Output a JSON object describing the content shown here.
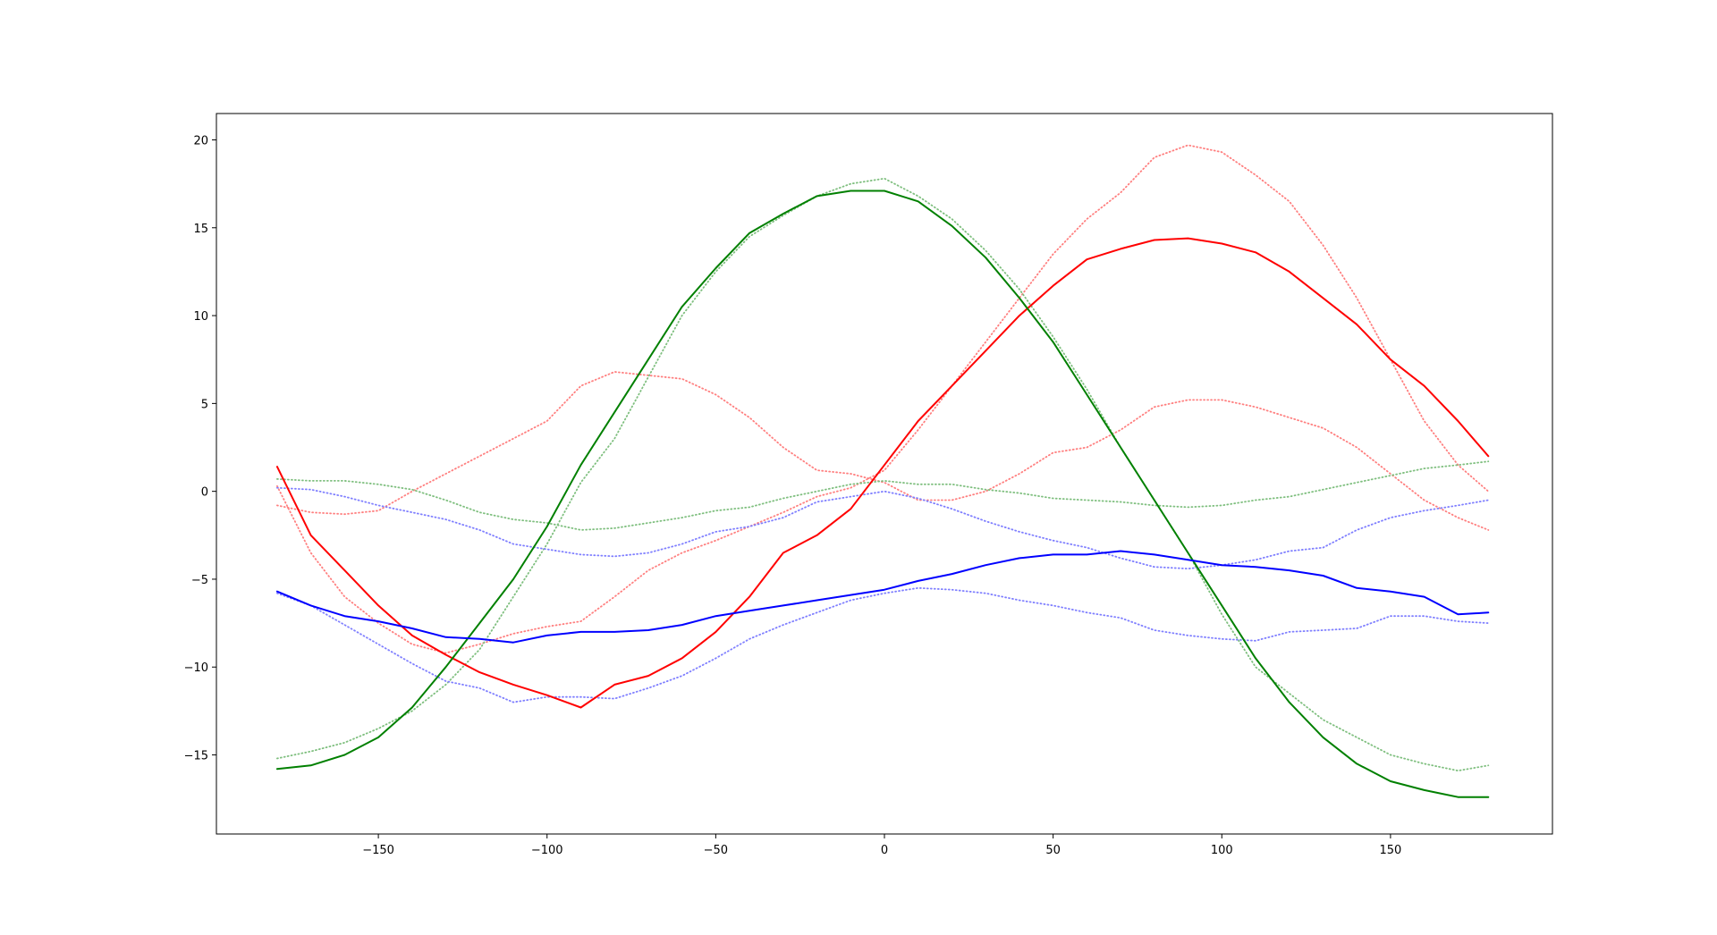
{
  "chart_data": {
    "type": "line",
    "title": "",
    "xlabel": "",
    "ylabel": "",
    "xlim": [
      -198,
      198
    ],
    "ylim": [
      -19.5,
      21.5
    ],
    "grid": false,
    "legend": "none",
    "x_ticks": [
      -150,
      -100,
      -50,
      0,
      50,
      100,
      150
    ],
    "y_ticks": [
      -15,
      -10,
      -5,
      0,
      5,
      10,
      15,
      20
    ],
    "x_tick_labels": [
      "−150",
      "−100",
      "−50",
      "0",
      "50",
      "100",
      "150"
    ],
    "y_tick_labels": [
      "−15",
      "−10",
      "−5",
      "0",
      "5",
      "10",
      "15",
      "20"
    ],
    "x": [
      -180,
      -170,
      -160,
      -150,
      -140,
      -130,
      -120,
      -110,
      -100,
      -90,
      -80,
      -70,
      -60,
      -50,
      -40,
      -30,
      -20,
      -10,
      0,
      10,
      20,
      30,
      40,
      50,
      60,
      70,
      80,
      90,
      100,
      110,
      120,
      130,
      140,
      150,
      160,
      170,
      179
    ],
    "series": [
      {
        "color": "#ff0000",
        "style": "solid",
        "values": [
          1.4,
          -2.5,
          -4.5,
          -6.5,
          -8.2,
          -9.3,
          -10.3,
          -11.0,
          -11.6,
          -12.3,
          -11.0,
          -10.5,
          -9.5,
          -8.0,
          -6.0,
          -3.5,
          -2.5,
          -1.0,
          1.5,
          4.0,
          6.0,
          8.0,
          10.0,
          11.7,
          13.2,
          13.8,
          14.3,
          14.4,
          14.1,
          13.6,
          12.5,
          11.0,
          9.5,
          7.5,
          6.0,
          4.0,
          2.0
        ]
      },
      {
        "color": "#008000",
        "style": "solid",
        "values": [
          -15.8,
          -15.6,
          -15.0,
          -14.0,
          -12.3,
          -10.0,
          -7.5,
          -5.0,
          -2.0,
          1.5,
          4.5,
          7.5,
          10.5,
          12.7,
          14.7,
          15.8,
          16.8,
          17.1,
          17.1,
          16.5,
          15.1,
          13.3,
          11.0,
          8.5,
          5.5,
          2.5,
          -0.5,
          -3.5,
          -6.5,
          -9.5,
          -12.0,
          -14.0,
          -15.5,
          -16.5,
          -17.0,
          -17.4,
          -17.4
        ]
      },
      {
        "color": "#0000ff",
        "style": "solid",
        "values": [
          -5.7,
          -6.5,
          -7.1,
          -7.4,
          -7.8,
          -8.3,
          -8.4,
          -8.6,
          -8.2,
          -8.0,
          -8.0,
          -7.9,
          -7.6,
          -7.1,
          -6.8,
          -6.5,
          -6.2,
          -5.9,
          -5.6,
          -5.1,
          -4.7,
          -4.2,
          -3.8,
          -3.6,
          -3.6,
          -3.4,
          -3.6,
          -3.9,
          -4.2,
          -4.3,
          -4.5,
          -4.8,
          -5.5,
          -5.7,
          -6.0,
          -7.0,
          -6.9
        ]
      },
      {
        "color": "#ff7f7f",
        "style": "dotted",
        "values": [
          -0.8,
          -1.2,
          -1.3,
          -1.1,
          0.0,
          1.0,
          2.0,
          3.0,
          4.0,
          6.0,
          6.8,
          6.6,
          6.4,
          5.5,
          4.2,
          2.5,
          1.2,
          1.0,
          0.5,
          -0.5,
          -0.5,
          0.0,
          1.0,
          2.2,
          2.5,
          3.5,
          4.8,
          5.2,
          5.2,
          4.8,
          4.2,
          3.6,
          2.5,
          1.0,
          -0.5,
          -1.5,
          -2.2
        ]
      },
      {
        "color": "#ff7f7f",
        "style": "dotted",
        "values": [
          0.3,
          -3.5,
          -6.0,
          -7.5,
          -8.7,
          -9.2,
          -8.7,
          -8.1,
          -7.7,
          -7.4,
          -6.0,
          -4.5,
          -3.5,
          -2.8,
          -2.0,
          -1.2,
          -0.3,
          0.2,
          1.2,
          3.5,
          6.0,
          8.5,
          11.0,
          13.5,
          15.5,
          17.0,
          19.0,
          19.7,
          19.3,
          18.0,
          16.5,
          14.0,
          11.0,
          7.5,
          4.0,
          1.5,
          0.0
        ]
      },
      {
        "color": "#7fbf7f",
        "style": "dotted",
        "values": [
          -15.2,
          -14.8,
          -14.3,
          -13.5,
          -12.5,
          -11.0,
          -9.0,
          -6.0,
          -3.0,
          0.5,
          3.0,
          6.5,
          10.0,
          12.5,
          14.5,
          15.7,
          16.8,
          17.5,
          17.8,
          16.8,
          15.5,
          13.7,
          11.5,
          8.8,
          5.8,
          2.5,
          -0.5,
          -3.5,
          -7.0,
          -10.0,
          -11.5,
          -13.0,
          -14.0,
          -15.0,
          -15.5,
          -15.9,
          -15.6
        ]
      },
      {
        "color": "#7fbf7f",
        "style": "dotted",
        "values": [
          0.7,
          0.6,
          0.6,
          0.4,
          0.1,
          -0.5,
          -1.2,
          -1.6,
          -1.8,
          -2.2,
          -2.1,
          -1.8,
          -1.5,
          -1.1,
          -0.9,
          -0.4,
          0.0,
          0.4,
          0.6,
          0.4,
          0.4,
          0.1,
          -0.1,
          -0.4,
          -0.5,
          -0.6,
          -0.8,
          -0.9,
          -0.8,
          -0.5,
          -0.3,
          0.1,
          0.5,
          0.9,
          1.3,
          1.5,
          1.7
        ]
      },
      {
        "color": "#7f7fff",
        "style": "dotted",
        "values": [
          0.2,
          0.1,
          -0.3,
          -0.8,
          -1.2,
          -1.6,
          -2.2,
          -3.0,
          -3.3,
          -3.6,
          -3.7,
          -3.5,
          -3.0,
          -2.3,
          -2.0,
          -1.5,
          -0.6,
          -0.3,
          0.0,
          -0.4,
          -1.0,
          -1.7,
          -2.3,
          -2.8,
          -3.2,
          -3.8,
          -4.3,
          -4.4,
          -4.2,
          -3.9,
          -3.4,
          -3.2,
          -2.2,
          -1.5,
          -1.1,
          -0.8,
          -0.5
        ]
      },
      {
        "color": "#7f7fff",
        "style": "dotted",
        "values": [
          -5.8,
          -6.5,
          -7.6,
          -8.7,
          -9.8,
          -10.8,
          -11.2,
          -12.0,
          -11.7,
          -11.7,
          -11.8,
          -11.2,
          -10.5,
          -9.5,
          -8.4,
          -7.6,
          -6.9,
          -6.2,
          -5.8,
          -5.5,
          -5.6,
          -5.8,
          -6.2,
          -6.5,
          -6.9,
          -7.2,
          -7.9,
          -8.2,
          -8.4,
          -8.5,
          -8.0,
          -7.9,
          -7.8,
          -7.1,
          -7.1,
          -7.4,
          -7.5
        ]
      }
    ]
  }
}
